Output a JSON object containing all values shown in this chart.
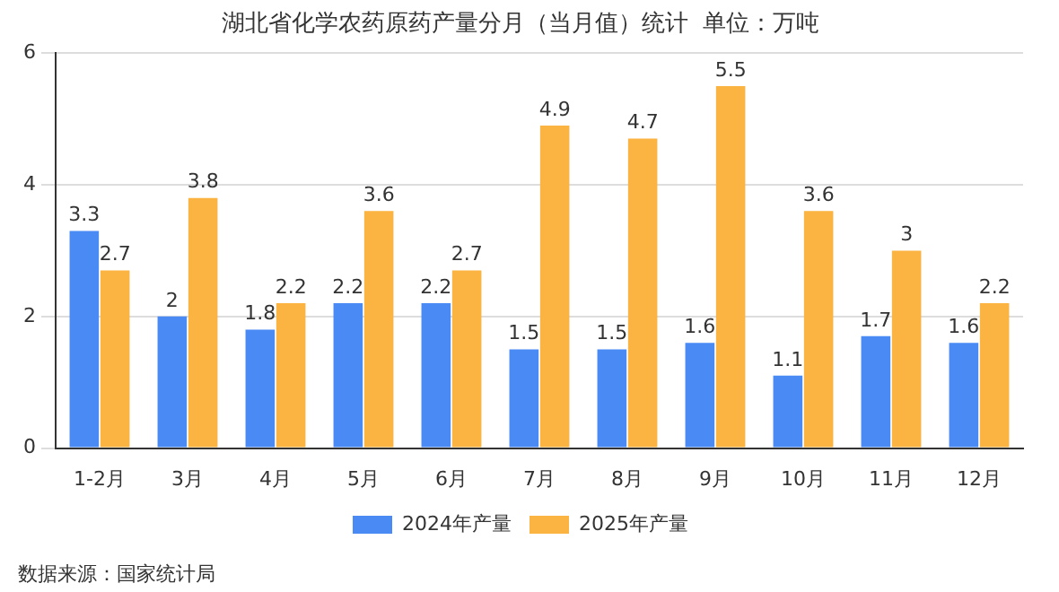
{
  "chart_data": {
    "type": "bar",
    "title": "湖北省化学农药原药产量分月（当月值）统计  单位：万吨",
    "categories": [
      "1-2月",
      "3月",
      "4月",
      "5月",
      "6月",
      "7月",
      "8月",
      "9月",
      "10月",
      "11月",
      "12月"
    ],
    "series": [
      {
        "name": "2024年产量",
        "color": "#4a8af4",
        "values": [
          3.3,
          2,
          1.8,
          2.2,
          2.2,
          1.5,
          1.5,
          1.6,
          1.1,
          1.7,
          1.6
        ]
      },
      {
        "name": "2025年产量",
        "color": "#fbb441",
        "values": [
          2.7,
          3.8,
          2.2,
          3.6,
          2.7,
          4.9,
          4.7,
          5.5,
          3.6,
          3,
          2.2
        ]
      }
    ],
    "ylim": [
      0,
      6
    ],
    "yticks": [
      0,
      2,
      4,
      6
    ],
    "grid": "y",
    "legend": "bottom",
    "data_labels": true,
    "annotations": [
      "数据来源：国家统计局"
    ]
  }
}
